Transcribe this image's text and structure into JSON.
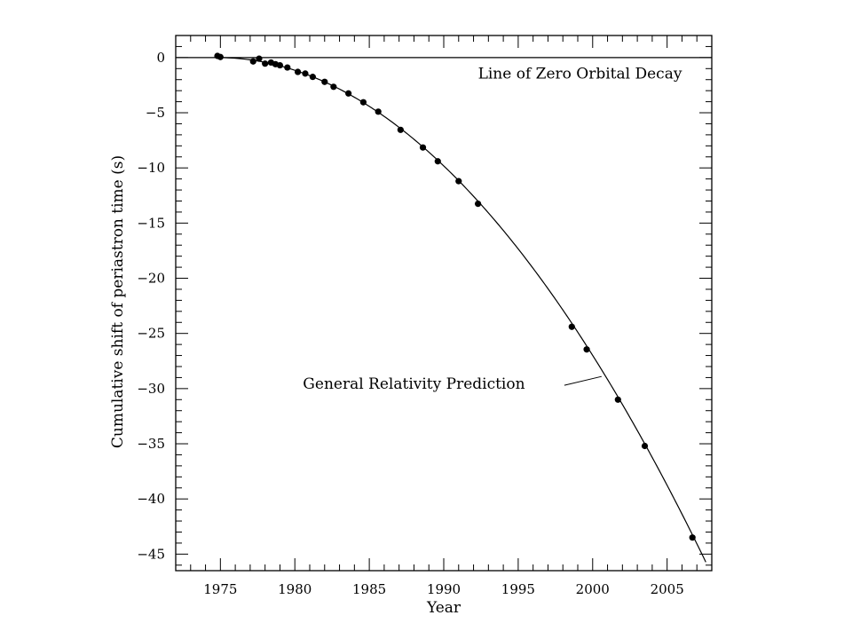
{
  "chart_data": {
    "type": "scatter",
    "title": "",
    "xlabel": "Year",
    "ylabel": "Cumulative shift of periastron time (s)",
    "xlim": [
      1972,
      2008
    ],
    "ylim": [
      -46.5,
      2
    ],
    "x_major_ticks": [
      1975,
      1980,
      1985,
      1990,
      1995,
      2000,
      2005
    ],
    "y_major_ticks": [
      0,
      -5,
      -10,
      -15,
      -20,
      -25,
      -30,
      -35,
      -40,
      -45
    ],
    "x_minor_step": 1,
    "y_minor_step": 1,
    "grid": false,
    "legend": "none",
    "colors": {
      "axes": "#000000",
      "points": "#000000",
      "curve": "#000000"
    },
    "series": [
      {
        "name": "",
        "kind": "points",
        "points": [
          {
            "x": 1974.8,
            "y": 0.15
          },
          {
            "x": 1975.0,
            "y": 0.05
          },
          {
            "x": 1977.2,
            "y": -0.35
          },
          {
            "x": 1977.6,
            "y": -0.1
          },
          {
            "x": 1978.0,
            "y": -0.55
          },
          {
            "x": 1978.4,
            "y": -0.45
          },
          {
            "x": 1978.7,
            "y": -0.6
          },
          {
            "x": 1979.0,
            "y": -0.7
          },
          {
            "x": 1979.5,
            "y": -0.9
          },
          {
            "x": 1980.2,
            "y": -1.3
          },
          {
            "x": 1980.7,
            "y": -1.45
          },
          {
            "x": 1981.2,
            "y": -1.75
          },
          {
            "x": 1982.0,
            "y": -2.2
          },
          {
            "x": 1982.6,
            "y": -2.65
          },
          {
            "x": 1983.6,
            "y": -3.25
          },
          {
            "x": 1984.6,
            "y": -4.05
          },
          {
            "x": 1985.6,
            "y": -4.9
          },
          {
            "x": 1987.1,
            "y": -6.55
          },
          {
            "x": 1988.6,
            "y": -8.15
          },
          {
            "x": 1989.6,
            "y": -9.4
          },
          {
            "x": 1991.0,
            "y": -11.2
          },
          {
            "x": 1992.3,
            "y": -13.25
          },
          {
            "x": 1998.6,
            "y": -24.4
          },
          {
            "x": 1999.6,
            "y": -26.45
          },
          {
            "x": 2001.7,
            "y": -31.0
          },
          {
            "x": 2003.5,
            "y": -35.2
          },
          {
            "x": 2006.7,
            "y": -43.5
          }
        ]
      },
      {
        "name": "General Relativity Prediction",
        "kind": "curve",
        "x_start": 1974.8,
        "x_end": 2007.6,
        "curve_coefficient": -0.0425
      },
      {
        "name": "Line of Zero Orbital Decay",
        "kind": "hline",
        "y": 0
      }
    ],
    "annotations": [
      {
        "id": "zero-decay-label",
        "text": "Line of Zero Orbital Decay",
        "x": 2006,
        "y": -1.5,
        "anchor": "end"
      },
      {
        "id": "gr-prediction-label",
        "text": "General Relativity Prediction",
        "x": 1988,
        "y": -29.6,
        "anchor": "middle",
        "pointer_from": [
          1998.1,
          -29.7
        ],
        "pointer_to": [
          2000.6,
          -28.9
        ]
      }
    ]
  }
}
